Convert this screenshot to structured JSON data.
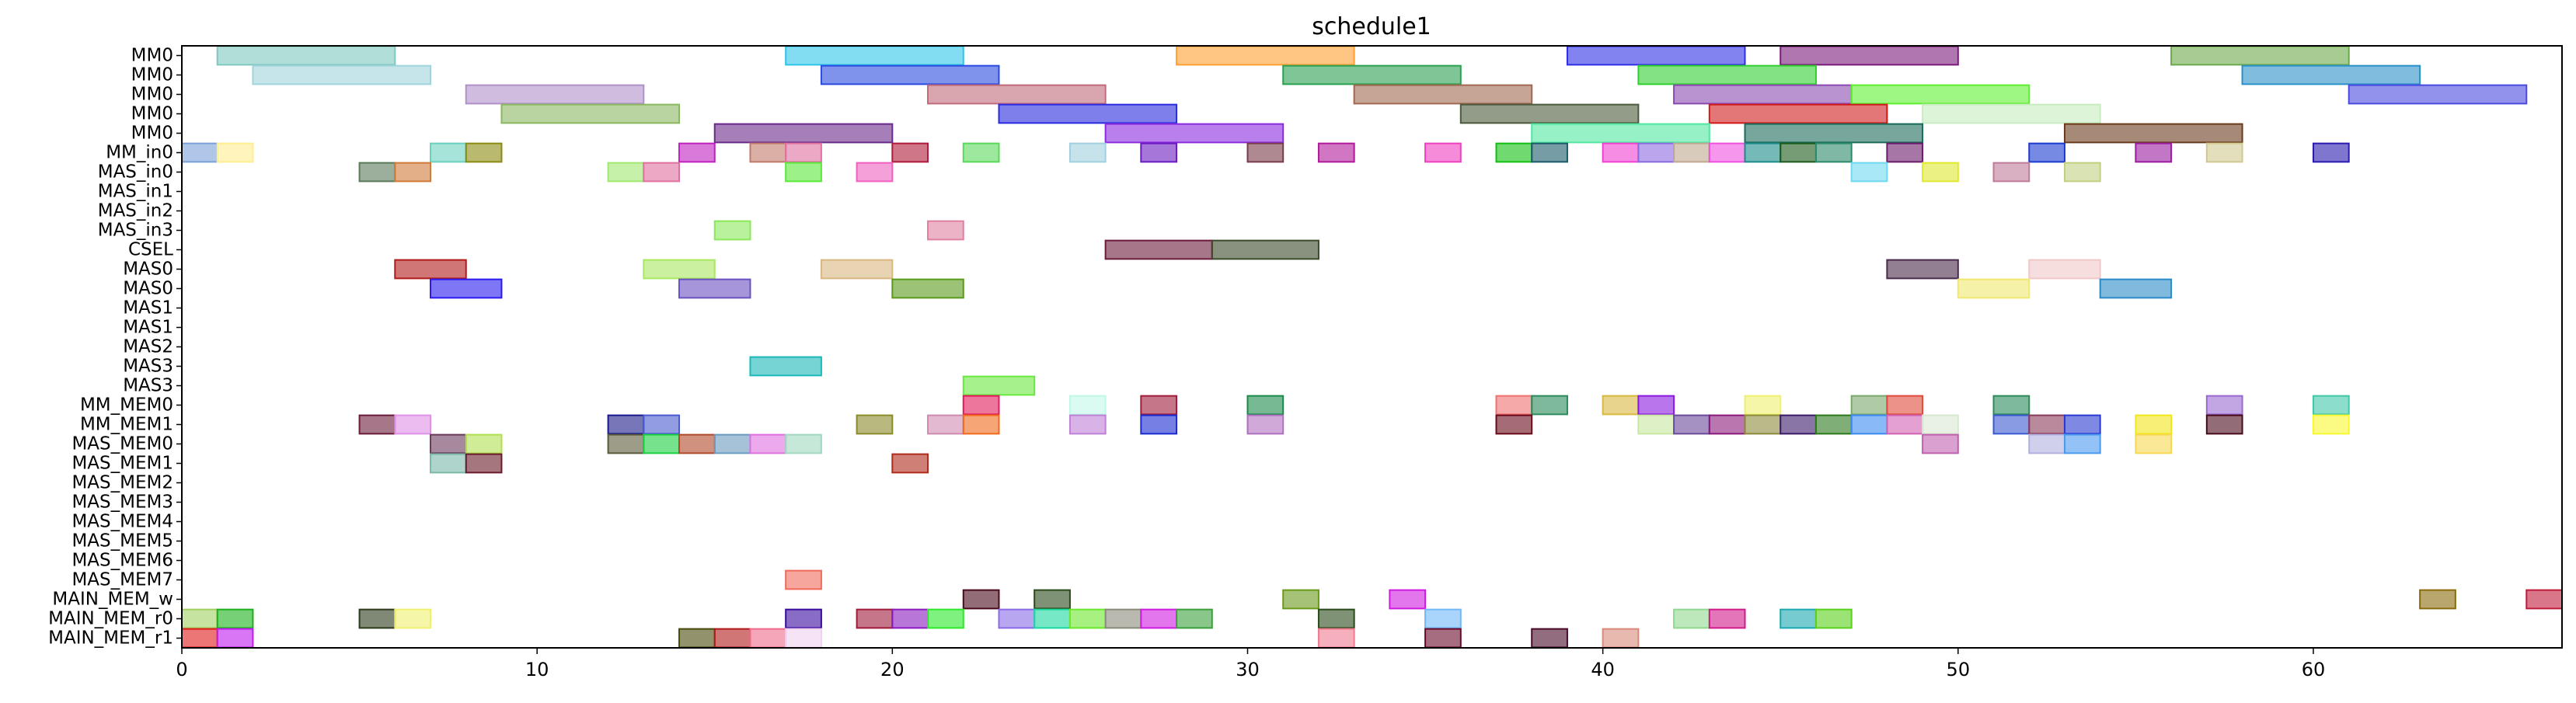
{
  "chart_data": {
    "type": "gantt",
    "title": "schedule1",
    "xlabel": "",
    "ylabel": "",
    "xlim": [
      0,
      67
    ],
    "x_ticks": [
      0,
      10,
      20,
      30,
      40,
      50,
      60
    ],
    "grid": false,
    "rows": [
      "MM0",
      "MM0",
      "MM0",
      "MM0",
      "MM0",
      "MM_in0",
      "MAS_in0",
      "MAS_in1",
      "MAS_in2",
      "MAS_in3",
      "CSEL",
      "MAS0",
      "MAS0",
      "MAS1",
      "MAS1",
      "MAS2",
      "MAS3",
      "MAS3",
      "MM_MEM0",
      "MM_MEM1",
      "MAS_MEM0",
      "MAS_MEM1",
      "MAS_MEM2",
      "MAS_MEM3",
      "MAS_MEM4",
      "MAS_MEM5",
      "MAS_MEM6",
      "MAS_MEM7",
      "MAIN_MEM_w",
      "MAIN_MEM_r0",
      "MAIN_MEM_r1"
    ],
    "tasks": [
      {
        "row": 0,
        "start": 1,
        "end": 6,
        "color": "#7fc8c0"
      },
      {
        "row": 0,
        "start": 17,
        "end": 22,
        "color": "#2ec4ea"
      },
      {
        "row": 0,
        "start": 28,
        "end": 33,
        "color": "#ffa030"
      },
      {
        "row": 0,
        "start": 39,
        "end": 44,
        "color": "#2e2ee6"
      },
      {
        "row": 0,
        "start": 45,
        "end": 50,
        "color": "#7a1a7a"
      },
      {
        "row": 0,
        "start": 56,
        "end": 61,
        "color": "#6aaa4a"
      },
      {
        "row": 1,
        "start": 2,
        "end": 7,
        "color": "#a0d4dc"
      },
      {
        "row": 1,
        "start": 18,
        "end": 23,
        "color": "#2a4ae0"
      },
      {
        "row": 1,
        "start": 31,
        "end": 36,
        "color": "#2aa050"
      },
      {
        "row": 1,
        "start": 41,
        "end": 46,
        "color": "#30d030"
      },
      {
        "row": 1,
        "start": 58,
        "end": 63,
        "color": "#2a90c8"
      },
      {
        "row": 2,
        "start": 8,
        "end": 13,
        "color": "#b090c8"
      },
      {
        "row": 2,
        "start": 21,
        "end": 26,
        "color": "#c06a7a"
      },
      {
        "row": 2,
        "start": 33,
        "end": 38,
        "color": "#a06850"
      },
      {
        "row": 2,
        "start": 42,
        "end": 47,
        "color": "#8a4ab0"
      },
      {
        "row": 2,
        "start": 47,
        "end": 52,
        "color": "#5ef030"
      },
      {
        "row": 2,
        "start": 61,
        "end": 66,
        "color": "#4a4ae0"
      },
      {
        "row": 3,
        "start": 9,
        "end": 14,
        "color": "#8ab860"
      },
      {
        "row": 3,
        "start": 23,
        "end": 28,
        "color": "#2a2ae0"
      },
      {
        "row": 3,
        "start": 36,
        "end": 41,
        "color": "#4a5a3a"
      },
      {
        "row": 3,
        "start": 43,
        "end": 48,
        "color": "#d01a1a"
      },
      {
        "row": 3,
        "start": 49,
        "end": 54,
        "color": "#c8ecc0"
      },
      {
        "row": 4,
        "start": 15,
        "end": 20,
        "color": "#6a2a8a"
      },
      {
        "row": 4,
        "start": 26,
        "end": 31,
        "color": "#8a2ae0"
      },
      {
        "row": 4,
        "start": 38,
        "end": 43,
        "color": "#50e8a0"
      },
      {
        "row": 4,
        "start": 44,
        "end": 49,
        "color": "#1a6a5a"
      },
      {
        "row": 4,
        "start": 53,
        "end": 58,
        "color": "#6a3a1a"
      },
      {
        "row": 5,
        "start": 0,
        "end": 1,
        "color": "#7aa0d8"
      },
      {
        "row": 5,
        "start": 1,
        "end": 2,
        "color": "#ffee90"
      },
      {
        "row": 5,
        "start": 7,
        "end": 8,
        "color": "#6ad0c0"
      },
      {
        "row": 5,
        "start": 8,
        "end": 9,
        "color": "#8a8a10"
      },
      {
        "row": 5,
        "start": 14,
        "end": 15,
        "color": "#c020c0"
      },
      {
        "row": 5,
        "start": 16,
        "end": 17,
        "color": "#c07a6a"
      },
      {
        "row": 5,
        "start": 17,
        "end": 18,
        "color": "#e070a0"
      },
      {
        "row": 5,
        "start": 20,
        "end": 21,
        "color": "#b01a3a"
      },
      {
        "row": 5,
        "start": 22,
        "end": 23,
        "color": "#5ad85a"
      },
      {
        "row": 5,
        "start": 25,
        "end": 26,
        "color": "#a0d0e0"
      },
      {
        "row": 5,
        "start": 27,
        "end": 28,
        "color": "#6a1ac0"
      },
      {
        "row": 5,
        "start": 30,
        "end": 31,
        "color": "#7a3a4a"
      },
      {
        "row": 5,
        "start": 32,
        "end": 33,
        "color": "#b01a9a"
      },
      {
        "row": 5,
        "start": 35,
        "end": 36,
        "color": "#f040c0"
      },
      {
        "row": 5,
        "start": 37,
        "end": 38,
        "color": "#10c010"
      },
      {
        "row": 5,
        "start": 38,
        "end": 39,
        "color": "#1a5a6a"
      },
      {
        "row": 5,
        "start": 40,
        "end": 41,
        "color": "#f040d0"
      },
      {
        "row": 5,
        "start": 41,
        "end": 42,
        "color": "#8a6ae0"
      },
      {
        "row": 5,
        "start": 42,
        "end": 43,
        "color": "#c0a890"
      },
      {
        "row": 5,
        "start": 43,
        "end": 44,
        "color": "#f050e0"
      },
      {
        "row": 5,
        "start": 44,
        "end": 45,
        "color": "#1a8a8a"
      },
      {
        "row": 5,
        "start": 45,
        "end": 46,
        "color": "#1a5a1a"
      },
      {
        "row": 5,
        "start": 46,
        "end": 47,
        "color": "#2a8a6a"
      },
      {
        "row": 5,
        "start": 48,
        "end": 49,
        "color": "#6a1a6a"
      },
      {
        "row": 5,
        "start": 52,
        "end": 53,
        "color": "#1a3ad0"
      },
      {
        "row": 5,
        "start": 55,
        "end": 56,
        "color": "#9a1aa0"
      },
      {
        "row": 5,
        "start": 57,
        "end": 58,
        "color": "#d0c890"
      },
      {
        "row": 5,
        "start": 60,
        "end": 61,
        "color": "#2a1ab0"
      },
      {
        "row": 6,
        "start": 5,
        "end": 6,
        "color": "#5a7a5a"
      },
      {
        "row": 6,
        "start": 6,
        "end": 7,
        "color": "#d07a3a"
      },
      {
        "row": 6,
        "start": 12,
        "end": 13,
        "color": "#a0e870"
      },
      {
        "row": 6,
        "start": 13,
        "end": 14,
        "color": "#e070a0"
      },
      {
        "row": 6,
        "start": 17,
        "end": 18,
        "color": "#5ae83a"
      },
      {
        "row": 6,
        "start": 19,
        "end": 20,
        "color": "#f060c0"
      },
      {
        "row": 6,
        "start": 47,
        "end": 48,
        "color": "#70d8f0"
      },
      {
        "row": 6,
        "start": 49,
        "end": 50,
        "color": "#e0e830"
      },
      {
        "row": 6,
        "start": 51,
        "end": 52,
        "color": "#c07a9a"
      },
      {
        "row": 6,
        "start": 53,
        "end": 54,
        "color": "#c0d080"
      },
      {
        "row": 9,
        "start": 15,
        "end": 16,
        "color": "#8ae85a"
      },
      {
        "row": 9,
        "start": 21,
        "end": 22,
        "color": "#e080a0"
      },
      {
        "row": 10,
        "start": 26,
        "end": 29,
        "color": "#6a1a3a"
      },
      {
        "row": 10,
        "start": 29,
        "end": 32,
        "color": "#3a4a2a"
      },
      {
        "row": 11,
        "start": 6,
        "end": 8,
        "color": "#b01a1a"
      },
      {
        "row": 11,
        "start": 13,
        "end": 15,
        "color": "#a8e860"
      },
      {
        "row": 11,
        "start": 18,
        "end": 20,
        "color": "#d8b880"
      },
      {
        "row": 11,
        "start": 48,
        "end": 50,
        "color": "#4a2a4a"
      },
      {
        "row": 11,
        "start": 52,
        "end": 54,
        "color": "#f0c8c8"
      },
      {
        "row": 12,
        "start": 7,
        "end": 9,
        "color": "#2a1af0"
      },
      {
        "row": 12,
        "start": 14,
        "end": 16,
        "color": "#6a50c0"
      },
      {
        "row": 12,
        "start": 20,
        "end": 22,
        "color": "#5a9a1a"
      },
      {
        "row": 12,
        "start": 50,
        "end": 52,
        "color": "#f0e870"
      },
      {
        "row": 12,
        "start": 54,
        "end": 56,
        "color": "#2a8ac8"
      },
      {
        "row": 16,
        "start": 16,
        "end": 18,
        "color": "#1ab8b8"
      },
      {
        "row": 17,
        "start": 22,
        "end": 24,
        "color": "#6ae840"
      },
      {
        "row": 18,
        "start": 22,
        "end": 23,
        "color": "#e01a5a"
      },
      {
        "row": 18,
        "start": 25,
        "end": 26,
        "color": "#c0f8e8"
      },
      {
        "row": 18,
        "start": 27,
        "end": 28,
        "color": "#a01a3a"
      },
      {
        "row": 18,
        "start": 30,
        "end": 31,
        "color": "#1a8a4a"
      },
      {
        "row": 18,
        "start": 37,
        "end": 38,
        "color": "#f07070"
      },
      {
        "row": 18,
        "start": 38,
        "end": 39,
        "color": "#2a8a5a"
      },
      {
        "row": 18,
        "start": 40,
        "end": 41,
        "color": "#d8b840"
      },
      {
        "row": 18,
        "start": 41,
        "end": 42,
        "color": "#8a1ae0"
      },
      {
        "row": 18,
        "start": 44,
        "end": 45,
        "color": "#f0f070"
      },
      {
        "row": 18,
        "start": 47,
        "end": 48,
        "color": "#7aa86a"
      },
      {
        "row": 18,
        "start": 48,
        "end": 49,
        "color": "#e04a3a"
      },
      {
        "row": 18,
        "start": 51,
        "end": 52,
        "color": "#2a8a5a"
      },
      {
        "row": 18,
        "start": 57,
        "end": 58,
        "color": "#9a6ad0"
      },
      {
        "row": 18,
        "start": 60,
        "end": 61,
        "color": "#40c8a8"
      },
      {
        "row": 19,
        "start": 5,
        "end": 6,
        "color": "#6a1a3a"
      },
      {
        "row": 19,
        "start": 6,
        "end": 7,
        "color": "#e090e8"
      },
      {
        "row": 19,
        "start": 12,
        "end": 13,
        "color": "#1a1a8a"
      },
      {
        "row": 19,
        "start": 13,
        "end": 14,
        "color": "#4a5ad0"
      },
      {
        "row": 19,
        "start": 19,
        "end": 20,
        "color": "#8a8a2a"
      },
      {
        "row": 19,
        "start": 21,
        "end": 22,
        "color": "#d08ab0"
      },
      {
        "row": 19,
        "start": 22,
        "end": 23,
        "color": "#f06a1a"
      },
      {
        "row": 19,
        "start": 25,
        "end": 26,
        "color": "#c080d8"
      },
      {
        "row": 19,
        "start": 27,
        "end": 28,
        "color": "#1a2ad0"
      },
      {
        "row": 19,
        "start": 30,
        "end": 31,
        "color": "#b070c0"
      },
      {
        "row": 19,
        "start": 37,
        "end": 38,
        "color": "#6a0a1a"
      },
      {
        "row": 19,
        "start": 41,
        "end": 42,
        "color": "#c8e8a0"
      },
      {
        "row": 19,
        "start": 42,
        "end": 43,
        "color": "#6a4a9a"
      },
      {
        "row": 19,
        "start": 43,
        "end": 44,
        "color": "#8a1a7a"
      },
      {
        "row": 19,
        "start": 44,
        "end": 45,
        "color": "#8a8a3a"
      },
      {
        "row": 19,
        "start": 45,
        "end": 46,
        "color": "#3a1a6a"
      },
      {
        "row": 19,
        "start": 46,
        "end": 47,
        "color": "#2a7a1a"
      },
      {
        "row": 19,
        "start": 47,
        "end": 48,
        "color": "#3a8af0"
      },
      {
        "row": 19,
        "start": 48,
        "end": 49,
        "color": "#d060b0"
      },
      {
        "row": 19,
        "start": 49,
        "end": 50,
        "color": "#d8e8d0"
      },
      {
        "row": 19,
        "start": 51,
        "end": 52,
        "color": "#3a5ad0"
      },
      {
        "row": 19,
        "start": 52,
        "end": 53,
        "color": "#8a3a5a"
      },
      {
        "row": 19,
        "start": 53,
        "end": 54,
        "color": "#2a3ad0"
      },
      {
        "row": 19,
        "start": 55,
        "end": 56,
        "color": "#f0e81a"
      },
      {
        "row": 19,
        "start": 57,
        "end": 58,
        "color": "#4a0a1a"
      },
      {
        "row": 19,
        "start": 60,
        "end": 61,
        "color": "#f8f830"
      },
      {
        "row": 20,
        "start": 7,
        "end": 8,
        "color": "#6a3a5a"
      },
      {
        "row": 20,
        "start": 8,
        "end": 9,
        "color": "#b0e050"
      },
      {
        "row": 20,
        "start": 12,
        "end": 13,
        "color": "#5a5a3a"
      },
      {
        "row": 20,
        "start": 13,
        "end": 14,
        "color": "#1ad040"
      },
      {
        "row": 20,
        "start": 14,
        "end": 15,
        "color": "#b04a2a"
      },
      {
        "row": 20,
        "start": 15,
        "end": 16,
        "color": "#6a9ac0"
      },
      {
        "row": 20,
        "start": 16,
        "end": 17,
        "color": "#e070e0"
      },
      {
        "row": 20,
        "start": 17,
        "end": 18,
        "color": "#a0d8c0"
      },
      {
        "row": 20,
        "start": 49,
        "end": 50,
        "color": "#c060b0"
      },
      {
        "row": 20,
        "start": 52,
        "end": 53,
        "color": "#b0b0e0"
      },
      {
        "row": 20,
        "start": 53,
        "end": 54,
        "color": "#4a9af0"
      },
      {
        "row": 20,
        "start": 55,
        "end": 56,
        "color": "#f8d850"
      },
      {
        "row": 21,
        "start": 7,
        "end": 8,
        "color": "#7ab8a8"
      },
      {
        "row": 21,
        "start": 8,
        "end": 9,
        "color": "#6a1a2a"
      },
      {
        "row": 21,
        "start": 20,
        "end": 21,
        "color": "#b02a1a"
      },
      {
        "row": 27,
        "start": 17,
        "end": 18,
        "color": "#f06a5a"
      },
      {
        "row": 28,
        "start": 22,
        "end": 23,
        "color": "#4a0a1a"
      },
      {
        "row": 28,
        "start": 24,
        "end": 25,
        "color": "#2a4a1a"
      },
      {
        "row": 28,
        "start": 31,
        "end": 32,
        "color": "#6a9a1a"
      },
      {
        "row": 28,
        "start": 34,
        "end": 35,
        "color": "#d01ae0"
      },
      {
        "row": 28,
        "start": 63,
        "end": 64,
        "color": "#8a6a0a"
      },
      {
        "row": 28,
        "start": 66,
        "end": 67,
        "color": "#c01a3a"
      },
      {
        "row": 29,
        "start": 0,
        "end": 1,
        "color": "#a0d060"
      },
      {
        "row": 29,
        "start": 1,
        "end": 2,
        "color": "#1ab01a"
      },
      {
        "row": 29,
        "start": 5,
        "end": 6,
        "color": "#2a3a1a"
      },
      {
        "row": 29,
        "start": 6,
        "end": 7,
        "color": "#f0f070"
      },
      {
        "row": 29,
        "start": 17,
        "end": 18,
        "color": "#3a0aa0"
      },
      {
        "row": 29,
        "start": 19,
        "end": 20,
        "color": "#a01a3a"
      },
      {
        "row": 29,
        "start": 20,
        "end": 21,
        "color": "#8a1ac0"
      },
      {
        "row": 29,
        "start": 21,
        "end": 22,
        "color": "#2ae82a"
      },
      {
        "row": 29,
        "start": 23,
        "end": 24,
        "color": "#8a6ae8"
      },
      {
        "row": 29,
        "start": 24,
        "end": 25,
        "color": "#1ad8a0"
      },
      {
        "row": 29,
        "start": 25,
        "end": 26,
        "color": "#6ae82a"
      },
      {
        "row": 29,
        "start": 26,
        "end": 27,
        "color": "#8a8a7a"
      },
      {
        "row": 29,
        "start": 27,
        "end": 28,
        "color": "#d01ae0"
      },
      {
        "row": 29,
        "start": 28,
        "end": 29,
        "color": "#3aa03a"
      },
      {
        "row": 29,
        "start": 32,
        "end": 33,
        "color": "#2a4a1a"
      },
      {
        "row": 29,
        "start": 35,
        "end": 36,
        "color": "#70b8f8"
      },
      {
        "row": 29,
        "start": 42,
        "end": 43,
        "color": "#90d890"
      },
      {
        "row": 29,
        "start": 43,
        "end": 44,
        "color": "#d01a8a"
      },
      {
        "row": 29,
        "start": 45,
        "end": 46,
        "color": "#1aa8b0"
      },
      {
        "row": 29,
        "start": 46,
        "end": 47,
        "color": "#5ad01a"
      },
      {
        "row": 30,
        "start": 0,
        "end": 1,
        "color": "#e01a1a"
      },
      {
        "row": 30,
        "start": 1,
        "end": 2,
        "color": "#c01af0"
      },
      {
        "row": 30,
        "start": 14,
        "end": 15,
        "color": "#4a4a0a"
      },
      {
        "row": 30,
        "start": 15,
        "end": 16,
        "color": "#b01a1a"
      },
      {
        "row": 30,
        "start": 16,
        "end": 17,
        "color": "#f06a8a"
      },
      {
        "row": 30,
        "start": 17,
        "end": 18,
        "color": "#f0d0f0"
      },
      {
        "row": 30,
        "start": 32,
        "end": 33,
        "color": "#f07a90"
      },
      {
        "row": 30,
        "start": 35,
        "end": 36,
        "color": "#6a0a2a"
      },
      {
        "row": 30,
        "start": 38,
        "end": 39,
        "color": "#4a0a2a"
      },
      {
        "row": 30,
        "start": 40,
        "end": 41,
        "color": "#d88a7a"
      }
    ]
  }
}
